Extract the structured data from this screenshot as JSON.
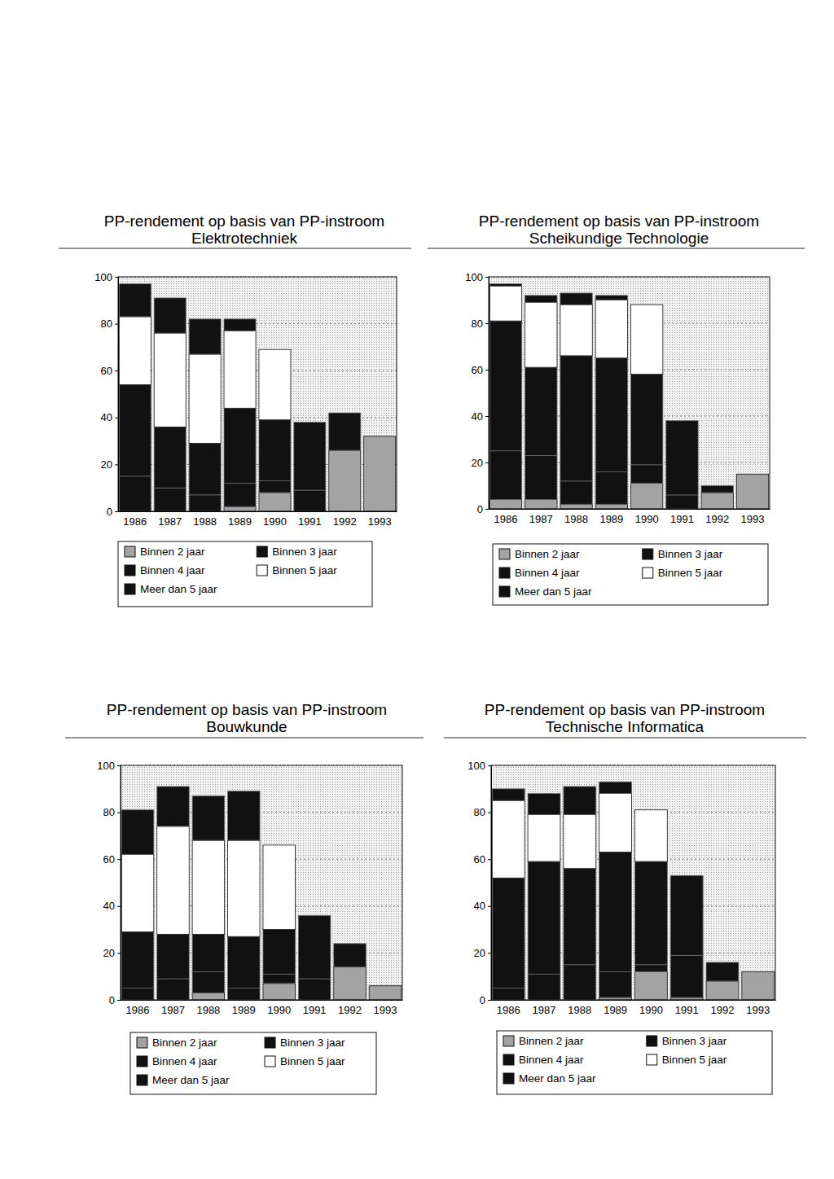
{
  "chart_data": [
    {
      "type": "bar",
      "stacked": true,
      "grid": true,
      "title": "PP-rendement op basis van PP-instroom",
      "subtitle": "Elektrotechniek",
      "categories": [
        "1986",
        "1987",
        "1988",
        "1989",
        "1990",
        "1991",
        "1992",
        "1993"
      ],
      "ylim": [
        0,
        100
      ],
      "yticks": [
        0,
        20,
        40,
        60,
        80,
        100
      ],
      "series": [
        {
          "name": "Binnen 2 jaar",
          "color": "#a3a3a3",
          "values": [
            0,
            0,
            0,
            2,
            8,
            0,
            26,
            32
          ]
        },
        {
          "name": "Binnen 3 jaar",
          "color": "#111111",
          "values": [
            15,
            10,
            7,
            10,
            5,
            9,
            16,
            null
          ]
        },
        {
          "name": "Binnen 4 jaar",
          "color": "#111111",
          "values": [
            39,
            26,
            22,
            32,
            26,
            29,
            null,
            null
          ]
        },
        {
          "name": "Binnen 5 jaar",
          "color": "#ffffff",
          "values": [
            29,
            40,
            38,
            33,
            30,
            null,
            null,
            null
          ]
        },
        {
          "name": "Meer dan 5 jaar",
          "color": "#111111",
          "values": [
            14,
            15,
            15,
            5,
            null,
            null,
            null,
            null
          ]
        }
      ]
    },
    {
      "type": "bar",
      "stacked": true,
      "grid": true,
      "title": "PP-rendement op basis van PP-instroom",
      "subtitle": "Scheikundige Technologie",
      "categories": [
        "1986",
        "1987",
        "1988",
        "1989",
        "1990",
        "1991",
        "1992",
        "1993"
      ],
      "ylim": [
        0,
        100
      ],
      "yticks": [
        0,
        20,
        40,
        60,
        80,
        100
      ],
      "series": [
        {
          "name": "Binnen 2 jaar",
          "color": "#a3a3a3",
          "values": [
            4,
            4,
            2,
            2,
            11,
            0,
            7,
            15
          ]
        },
        {
          "name": "Binnen 3 jaar",
          "color": "#111111",
          "values": [
            21,
            19,
            10,
            14,
            8,
            6,
            3,
            null
          ]
        },
        {
          "name": "Binnen 4 jaar",
          "color": "#111111",
          "values": [
            56,
            38,
            54,
            49,
            39,
            32,
            null,
            null
          ]
        },
        {
          "name": "Binnen 5 jaar",
          "color": "#ffffff",
          "values": [
            15,
            28,
            22,
            25,
            30,
            null,
            null,
            null
          ]
        },
        {
          "name": "Meer dan 5 jaar",
          "color": "#111111",
          "values": [
            1,
            3,
            5,
            2,
            null,
            null,
            null,
            null
          ]
        }
      ]
    },
    {
      "type": "bar",
      "stacked": true,
      "grid": true,
      "title": "PP-rendement op basis van PP-instroom",
      "subtitle": "Bouwkunde",
      "categories": [
        "1986",
        "1987",
        "1988",
        "1989",
        "1990",
        "1991",
        "1992",
        "1993"
      ],
      "ylim": [
        0,
        100
      ],
      "yticks": [
        0,
        20,
        40,
        60,
        80,
        100
      ],
      "series": [
        {
          "name": "Binnen 2 jaar",
          "color": "#a3a3a3",
          "values": [
            0,
            0,
            3,
            0,
            7,
            0,
            14,
            6
          ]
        },
        {
          "name": "Binnen 3 jaar",
          "color": "#111111",
          "values": [
            5,
            9,
            9,
            5,
            4,
            9,
            10,
            null
          ]
        },
        {
          "name": "Binnen 4 jaar",
          "color": "#111111",
          "values": [
            24,
            19,
            16,
            22,
            19,
            27,
            null,
            null
          ]
        },
        {
          "name": "Binnen 5 jaar",
          "color": "#ffffff",
          "values": [
            33,
            46,
            40,
            41,
            36,
            null,
            null,
            null
          ]
        },
        {
          "name": "Meer dan 5 jaar",
          "color": "#111111",
          "values": [
            19,
            17,
            19,
            21,
            null,
            null,
            null,
            null
          ]
        }
      ]
    },
    {
      "type": "bar",
      "stacked": true,
      "grid": true,
      "title": "PP-rendement op basis van PP-instroom",
      "subtitle": "Technische Informatica",
      "categories": [
        "1986",
        "1987",
        "1988",
        "1989",
        "1990",
        "1991",
        "1992",
        "1993"
      ],
      "ylim": [
        0,
        100
      ],
      "yticks": [
        0,
        20,
        40,
        60,
        80,
        100
      ],
      "series": [
        {
          "name": "Binnen 2 jaar",
          "color": "#a3a3a3",
          "values": [
            0,
            0,
            0,
            1,
            12,
            1,
            8,
            12
          ]
        },
        {
          "name": "Binnen 3 jaar",
          "color": "#111111",
          "values": [
            5,
            11,
            15,
            11,
            3,
            18,
            8,
            null
          ]
        },
        {
          "name": "Binnen 4 jaar",
          "color": "#111111",
          "values": [
            47,
            48,
            41,
            51,
            44,
            34,
            null,
            null
          ]
        },
        {
          "name": "Binnen 5 jaar",
          "color": "#ffffff",
          "values": [
            33,
            20,
            23,
            25,
            22,
            null,
            null,
            null
          ]
        },
        {
          "name": "Meer dan 5 jaar",
          "color": "#111111",
          "values": [
            5,
            9,
            12,
            5,
            null,
            null,
            null,
            null
          ]
        }
      ]
    }
  ]
}
